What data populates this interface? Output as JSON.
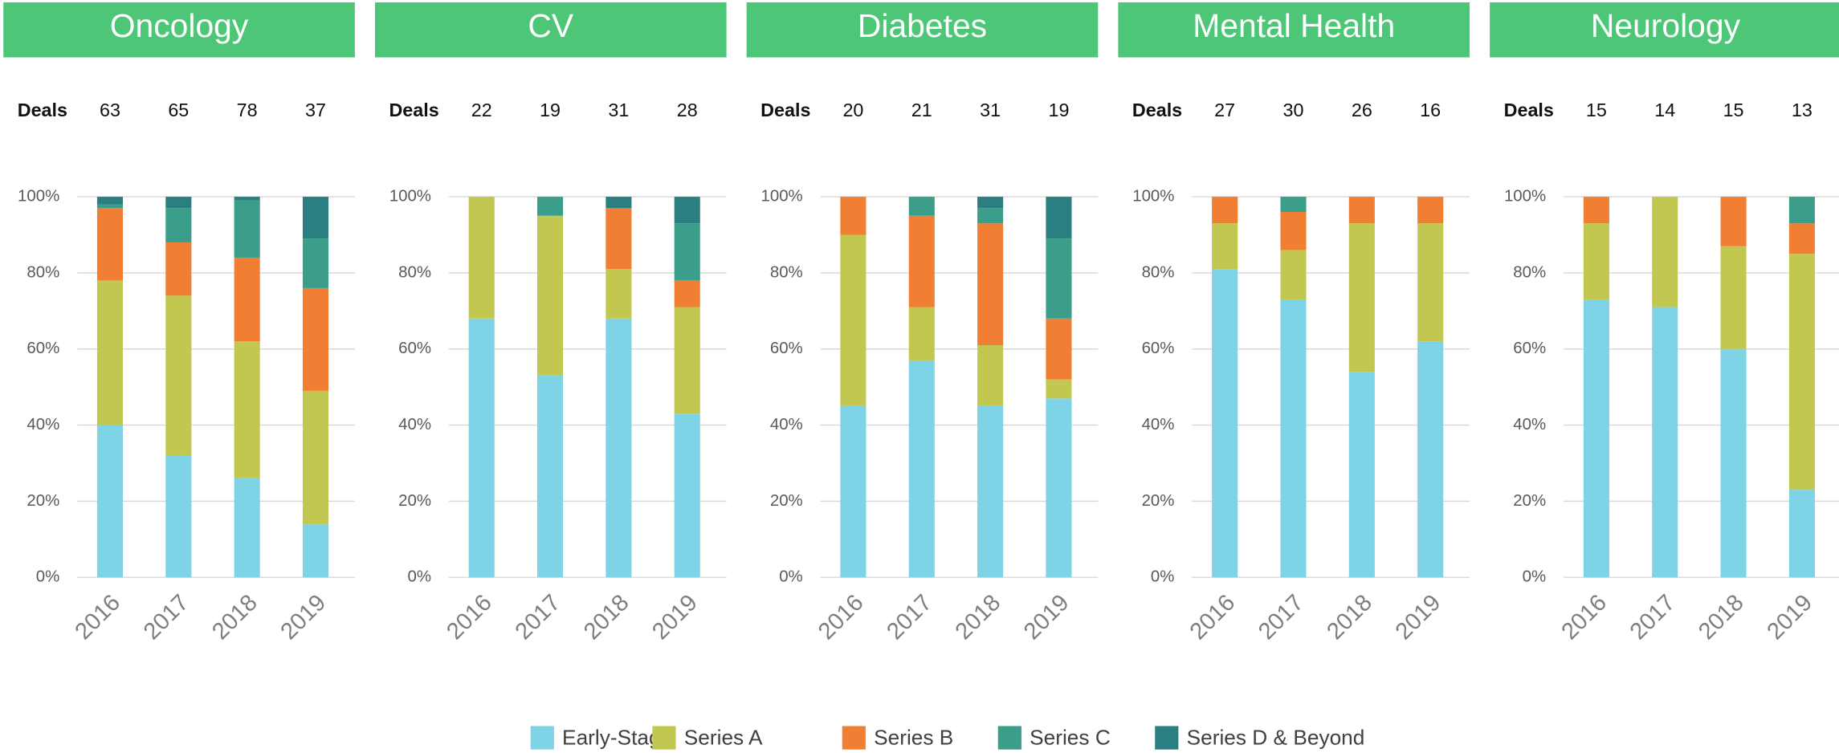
{
  "chart_data": [
    {
      "type": "stacked-bar",
      "title": "Oncology",
      "deals_label": "Deals",
      "deals": [
        63,
        65,
        78,
        37
      ],
      "categories": [
        "2016",
        "2017",
        "2018",
        "2019"
      ],
      "series": [
        {
          "values": [
            40,
            32,
            26,
            14
          ]
        },
        {
          "values": [
            38,
            42,
            36,
            35
          ]
        },
        {
          "values": [
            19,
            14,
            22,
            27
          ]
        },
        {
          "values": [
            1,
            9,
            15,
            13
          ]
        },
        {
          "values": [
            2,
            3,
            1,
            11
          ]
        }
      ],
      "ylim": [
        0,
        100
      ],
      "yticks": [
        {
          "value": 0,
          "label": "0%"
        },
        {
          "value": 20,
          "label": "20%"
        },
        {
          "value": 40,
          "label": "40%"
        },
        {
          "value": 60,
          "label": "60%"
        },
        {
          "value": 80,
          "label": "80%"
        },
        {
          "value": 100,
          "label": "100%"
        }
      ],
      "grid": true
    },
    {
      "type": "stacked-bar",
      "title": "CV",
      "deals_label": "Deals",
      "deals": [
        22,
        19,
        31,
        28
      ],
      "categories": [
        "2016",
        "2017",
        "2018",
        "2019"
      ],
      "series": [
        {
          "values": [
            68,
            53,
            68,
            43
          ]
        },
        {
          "values": [
            32,
            42,
            13,
            28
          ]
        },
        {
          "values": [
            0,
            0,
            16,
            7
          ]
        },
        {
          "values": [
            0,
            5,
            0,
            15
          ]
        },
        {
          "values": [
            0,
            0,
            3,
            7
          ]
        }
      ],
      "ylim": [
        0,
        100
      ],
      "yticks": [
        {
          "value": 0,
          "label": "0%"
        },
        {
          "value": 20,
          "label": "20%"
        },
        {
          "value": 40,
          "label": "40%"
        },
        {
          "value": 60,
          "label": "60%"
        },
        {
          "value": 80,
          "label": "80%"
        },
        {
          "value": 100,
          "label": "100%"
        }
      ],
      "grid": true
    },
    {
      "type": "stacked-bar",
      "title": "Diabetes",
      "deals_label": "Deals",
      "deals": [
        20,
        21,
        31,
        19
      ],
      "categories": [
        "2016",
        "2017",
        "2018",
        "2019"
      ],
      "series": [
        {
          "values": [
            45,
            57,
            45,
            47
          ]
        },
        {
          "values": [
            45,
            14,
            16,
            5
          ]
        },
        {
          "values": [
            10,
            24,
            32,
            16
          ]
        },
        {
          "values": [
            0,
            5,
            4,
            21
          ]
        },
        {
          "values": [
            0,
            0,
            3,
            11
          ]
        }
      ],
      "ylim": [
        0,
        100
      ],
      "yticks": [
        {
          "value": 0,
          "label": "0%"
        },
        {
          "value": 20,
          "label": "20%"
        },
        {
          "value": 40,
          "label": "40%"
        },
        {
          "value": 60,
          "label": "60%"
        },
        {
          "value": 80,
          "label": "80%"
        },
        {
          "value": 100,
          "label": "100%"
        }
      ],
      "grid": true
    },
    {
      "type": "stacked-bar",
      "title": "Mental Health",
      "deals_label": "Deals",
      "deals": [
        27,
        30,
        26,
        16
      ],
      "categories": [
        "2016",
        "2017",
        "2018",
        "2019"
      ],
      "series": [
        {
          "values": [
            81,
            73,
            54,
            62
          ]
        },
        {
          "values": [
            12,
            13,
            39,
            31
          ]
        },
        {
          "values": [
            7,
            10,
            7,
            7
          ]
        },
        {
          "values": [
            0,
            4,
            0,
            0
          ]
        },
        {
          "values": [
            0,
            0,
            0,
            0
          ]
        }
      ],
      "ylim": [
        0,
        100
      ],
      "yticks": [
        {
          "value": 0,
          "label": "0%"
        },
        {
          "value": 20,
          "label": "20%"
        },
        {
          "value": 40,
          "label": "40%"
        },
        {
          "value": 60,
          "label": "60%"
        },
        {
          "value": 80,
          "label": "80%"
        },
        {
          "value": 100,
          "label": "100%"
        }
      ],
      "grid": true
    },
    {
      "type": "stacked-bar",
      "title": "Neurology",
      "deals_label": "Deals",
      "deals": [
        15,
        14,
        15,
        13
      ],
      "categories": [
        "2016",
        "2017",
        "2018",
        "2019"
      ],
      "series": [
        {
          "values": [
            73,
            71,
            60,
            23
          ]
        },
        {
          "values": [
            20,
            29,
            27,
            62
          ]
        },
        {
          "values": [
            7,
            0,
            13,
            8
          ]
        },
        {
          "values": [
            0,
            0,
            0,
            7
          ]
        },
        {
          "values": [
            0,
            0,
            0,
            0
          ]
        }
      ],
      "ylim": [
        0,
        100
      ],
      "yticks": [
        {
          "value": 0,
          "label": "0%"
        },
        {
          "value": 20,
          "label": "20%"
        },
        {
          "value": 40,
          "label": "40%"
        },
        {
          "value": 60,
          "label": "60%"
        },
        {
          "value": 80,
          "label": "80%"
        },
        {
          "value": 100,
          "label": "100%"
        }
      ],
      "grid": true
    }
  ],
  "legend": [
    {
      "name": "Early-Stage",
      "color": "#7fd3e6"
    },
    {
      "name": "Series A",
      "color": "#c2c84f"
    },
    {
      "name": "Series B",
      "color": "#f07f33"
    },
    {
      "name": "Series C",
      "color": "#3a9e8a"
    },
    {
      "name": "Series D & Beyond",
      "color": "#2c7f80"
    }
  ]
}
